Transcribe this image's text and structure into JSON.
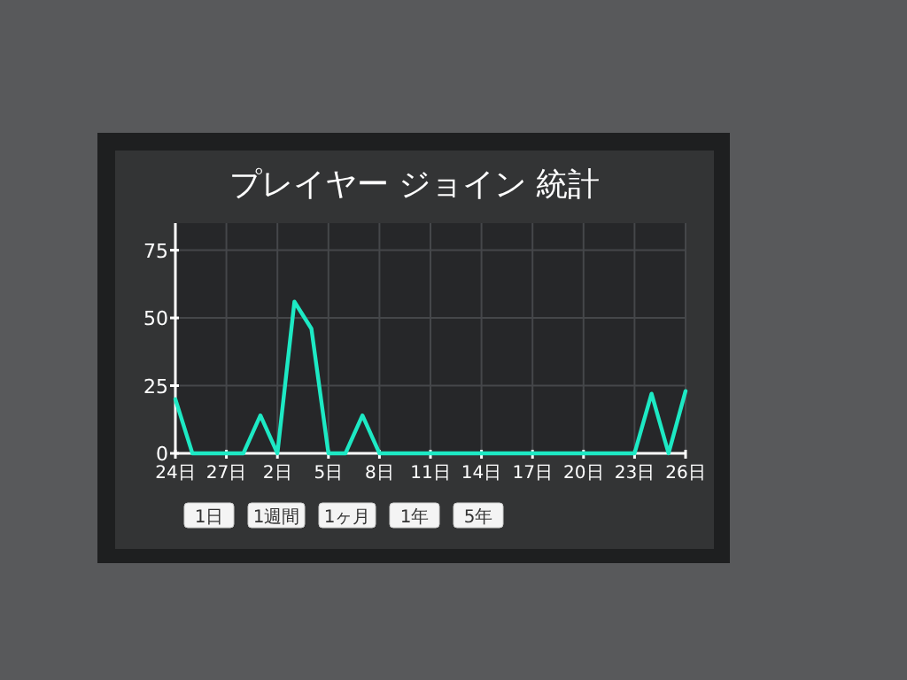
{
  "chart_data": {
    "type": "line",
    "title": "プレイヤー ジョイン 統計",
    "categories": [
      "24日",
      null,
      null,
      "27日",
      null,
      null,
      "2日",
      null,
      null,
      "5日",
      null,
      null,
      "8日",
      null,
      null,
      "11日",
      null,
      null,
      "14日",
      null,
      null,
      "17日",
      null,
      null,
      "20日",
      null,
      null,
      "23日",
      null,
      null,
      "26日"
    ],
    "series": [
      {
        "color": "#1de9c4",
        "values": [
          20,
          0,
          0,
          0,
          0,
          14,
          0,
          56,
          46,
          0,
          0,
          14,
          0,
          0,
          0,
          0,
          0,
          0,
          0,
          0,
          0,
          0,
          0,
          0,
          0,
          0,
          0,
          0,
          22,
          0,
          23
        ]
      }
    ],
    "ylim": [
      0,
      85
    ],
    "yticks": [
      0,
      25,
      50,
      75
    ],
    "grid": true,
    "marker": "none",
    "line_style": "solid",
    "annotations": [
      "1日",
      "1週間",
      "1ヶ月",
      "1年",
      "5年"
    ]
  }
}
